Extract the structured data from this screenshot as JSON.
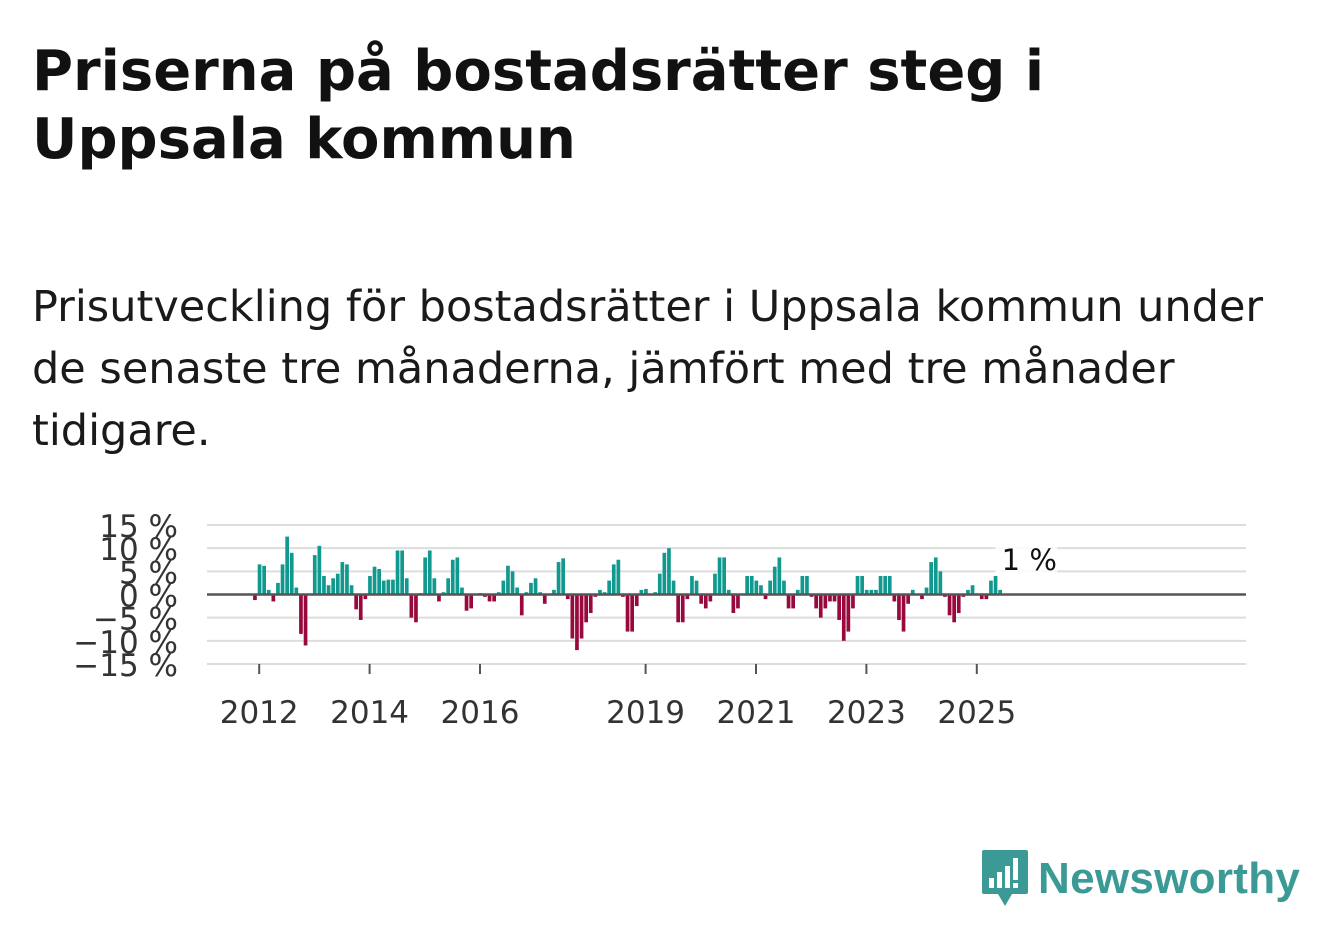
{
  "title": "Priserna på bostadsrätter steg i Uppsala kommun",
  "subtitle": "Prisutveckling för bostadsrätter i Uppsala kommun under de senaste tre månaderna, jämfört med tre månader tidigare.",
  "logo": {
    "brand": "Newsworthy"
  },
  "colors": {
    "positive": "#12998f",
    "negative": "#980a3e",
    "grid": "#dddddd",
    "zero": "#555555",
    "logo": "#3b9a96"
  },
  "chart_data": {
    "type": "bar",
    "title": "",
    "xlabel": "",
    "ylabel": "",
    "ylim": [
      -15,
      15
    ],
    "ytick_labels": [
      "15 %",
      "10 %",
      "5 %",
      "0 %",
      "−5 %",
      "−10 %",
      "−15 %"
    ],
    "yticks": [
      15,
      10,
      5,
      0,
      -5,
      -10,
      -15
    ],
    "xtick_labels": [
      "2012",
      "2014",
      "2016",
      "2019",
      "2021",
      "2023",
      "2025"
    ],
    "xticks_month_index": [
      12,
      36,
      60,
      96,
      120,
      144,
      168
    ],
    "start": "2011-01",
    "annotation": {
      "text": "1 %",
      "month_index": 178,
      "value": 1
    },
    "values": [
      0,
      0,
      0,
      0,
      0,
      0,
      0,
      0,
      0,
      0,
      0,
      -1.2,
      6.5,
      6.2,
      1.0,
      -1.5,
      2.5,
      6.5,
      12.5,
      9.0,
      1.5,
      -8.5,
      -11.0,
      0.2,
      8.5,
      10.5,
      4.0,
      2.0,
      3.5,
      4.5,
      7.0,
      6.5,
      2.0,
      -3.2,
      -5.5,
      -1.0,
      4.0,
      6.0,
      5.5,
      3.0,
      3.2,
      3.2,
      9.5,
      9.5,
      3.5,
      -5.0,
      -6.0,
      0.3,
      8.0,
      9.5,
      3.5,
      -1.5,
      0.5,
      3.5,
      7.5,
      8.0,
      1.5,
      -3.5,
      -3.0,
      0.2,
      0.3,
      -0.5,
      -1.5,
      -1.5,
      0.5,
      3.0,
      6.2,
      5.0,
      1.5,
      -4.5,
      0.5,
      2.5,
      3.5,
      0.5,
      -2.0,
      0.2,
      1.0,
      7.0,
      7.8,
      -1.0,
      -9.5,
      -12.0,
      -9.5,
      -6.0,
      -4.0,
      -0.5,
      1.0,
      0.5,
      3.0,
      6.5,
      7.5,
      -0.5,
      -8.0,
      -8.0,
      -2.5,
      1.0,
      1.2,
      0.2,
      0.5,
      4.5,
      9.0,
      10.0,
      3.0,
      -6.0,
      -6.0,
      -1.0,
      4.0,
      3.0,
      -2.0,
      -3.0,
      -1.5,
      4.5,
      8.0,
      8.0,
      1.0,
      -4.0,
      -3.0,
      0.2,
      4.0,
      4.0,
      3.0,
      2.0,
      -1.0,
      3.0,
      6.0,
      8.0,
      3.0,
      -3.0,
      -3.0,
      1.0,
      4.0,
      4.0,
      -0.5,
      -3.0,
      -5.0,
      -3.0,
      -1.5,
      -1.5,
      -5.5,
      -10.0,
      -8.0,
      -3.0,
      4.0,
      4.0,
      1.0,
      1.0,
      1.0,
      4.0,
      4.0,
      4.0,
      -1.5,
      -5.5,
      -8.0,
      -2.0,
      1.0,
      0.2,
      -1.0,
      1.5,
      7.0,
      8.0,
      5.0,
      -0.5,
      -4.5,
      -6.0,
      -4.0,
      -0.5,
      1.0,
      2.0,
      0.2,
      -1.0,
      -1.0,
      3.0,
      4.0,
      1.0
    ]
  }
}
